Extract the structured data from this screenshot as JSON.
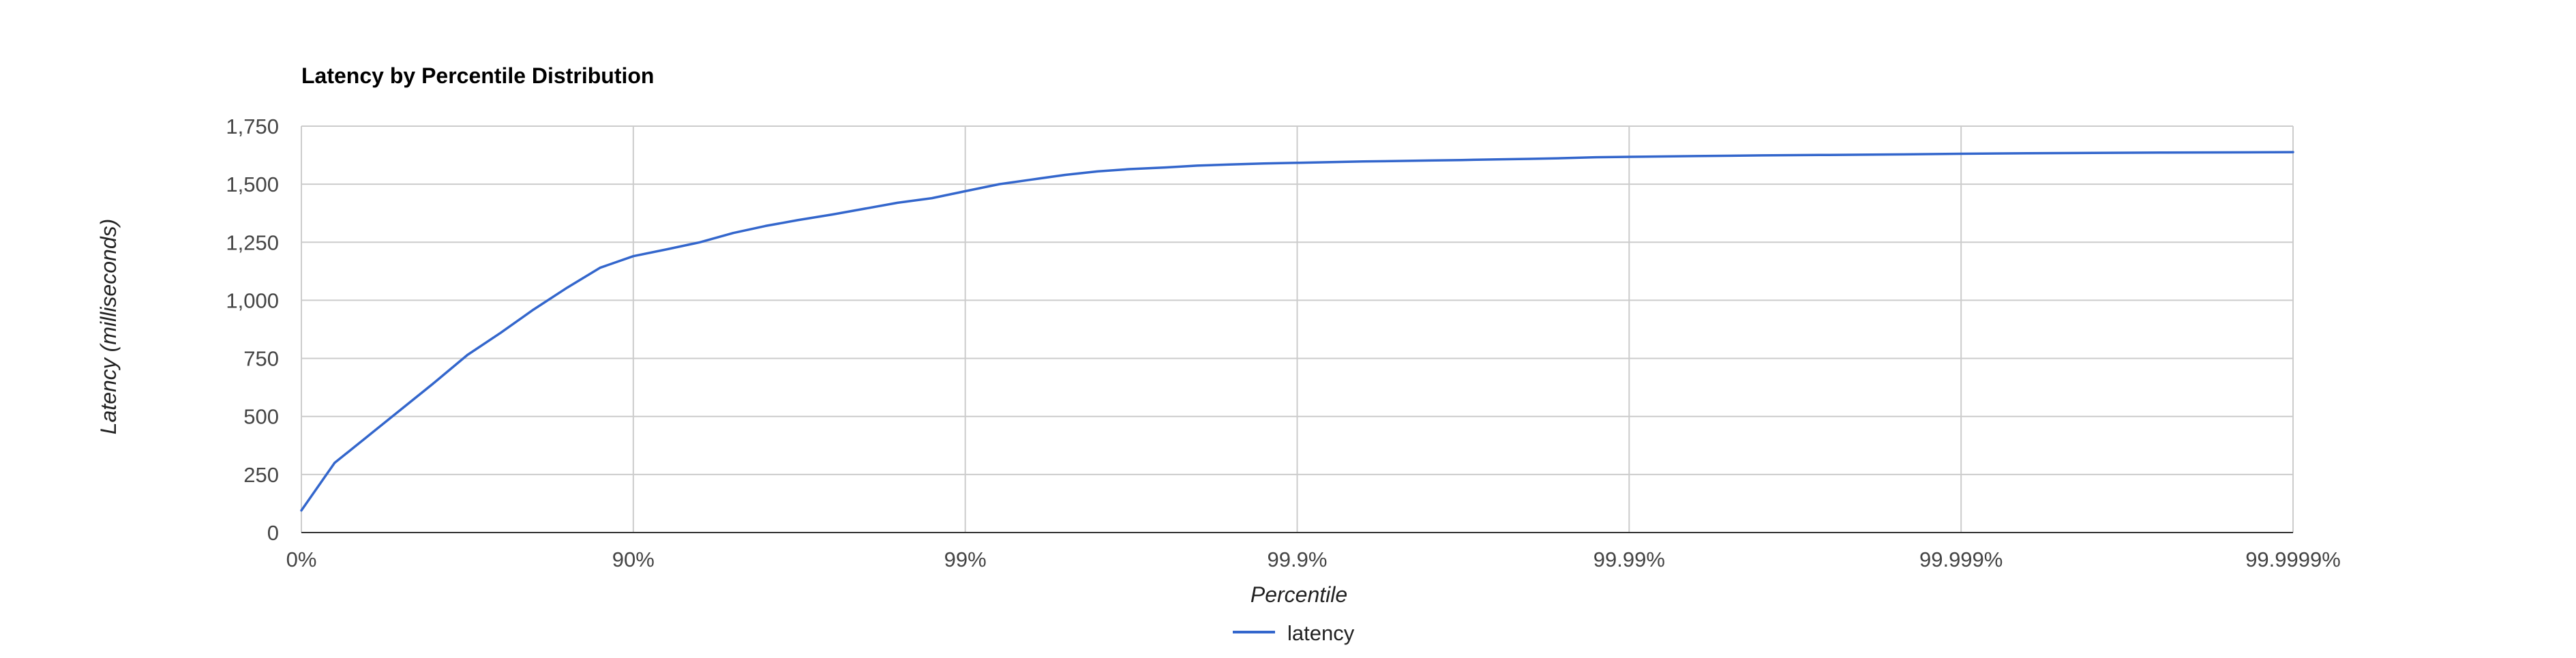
{
  "chart_data": {
    "type": "line",
    "title": "Latency by Percentile Distribution",
    "xlabel": "Percentile",
    "ylabel": "Latency (milliseconds)",
    "x_scale": "log-inverse-percentile",
    "x_ticks": [
      "0%",
      "90%",
      "99%",
      "99.9%",
      "99.99%",
      "99.999%",
      "99.9999%"
    ],
    "y_ticks": [
      "0",
      "250",
      "500",
      "750",
      "1,000",
      "1,250",
      "1,500",
      "1,750"
    ],
    "ylim": [
      0,
      1750
    ],
    "grid": true,
    "legend_position": "bottom",
    "series": [
      {
        "name": "latency",
        "color": "#3366cc",
        "x": [
          0,
          20.6,
          36.9,
          49.9,
          60.2,
          68.4,
          74.9,
          80.0,
          84.2,
          87.4,
          90.0,
          92.1,
          93.7,
          95.0,
          96.0,
          96.8,
          97.5,
          98.0,
          98.4,
          98.74,
          99.0,
          99.21,
          99.37,
          99.5,
          99.6,
          99.68,
          99.75,
          99.8,
          99.84,
          99.874,
          99.9,
          99.921,
          99.937,
          99.95,
          99.96,
          99.968,
          99.975,
          99.98,
          99.984,
          99.9874,
          99.99,
          99.9937,
          99.996,
          99.9975,
          99.9984,
          99.999,
          99.99937,
          99.9996,
          99.99975,
          99.99984,
          99.9999
        ],
        "values": [
          95,
          300,
          415,
          530,
          645,
          765,
          860,
          960,
          1055,
          1140,
          1190,
          1220,
          1250,
          1290,
          1320,
          1345,
          1370,
          1395,
          1420,
          1440,
          1470,
          1500,
          1520,
          1540,
          1555,
          1565,
          1572,
          1580,
          1585,
          1589,
          1592,
          1595,
          1598,
          1600,
          1602,
          1604,
          1607,
          1609,
          1612,
          1616,
          1618,
          1621,
          1624,
          1626,
          1628,
          1631,
          1633,
          1635,
          1636,
          1637,
          1638
        ]
      }
    ]
  }
}
